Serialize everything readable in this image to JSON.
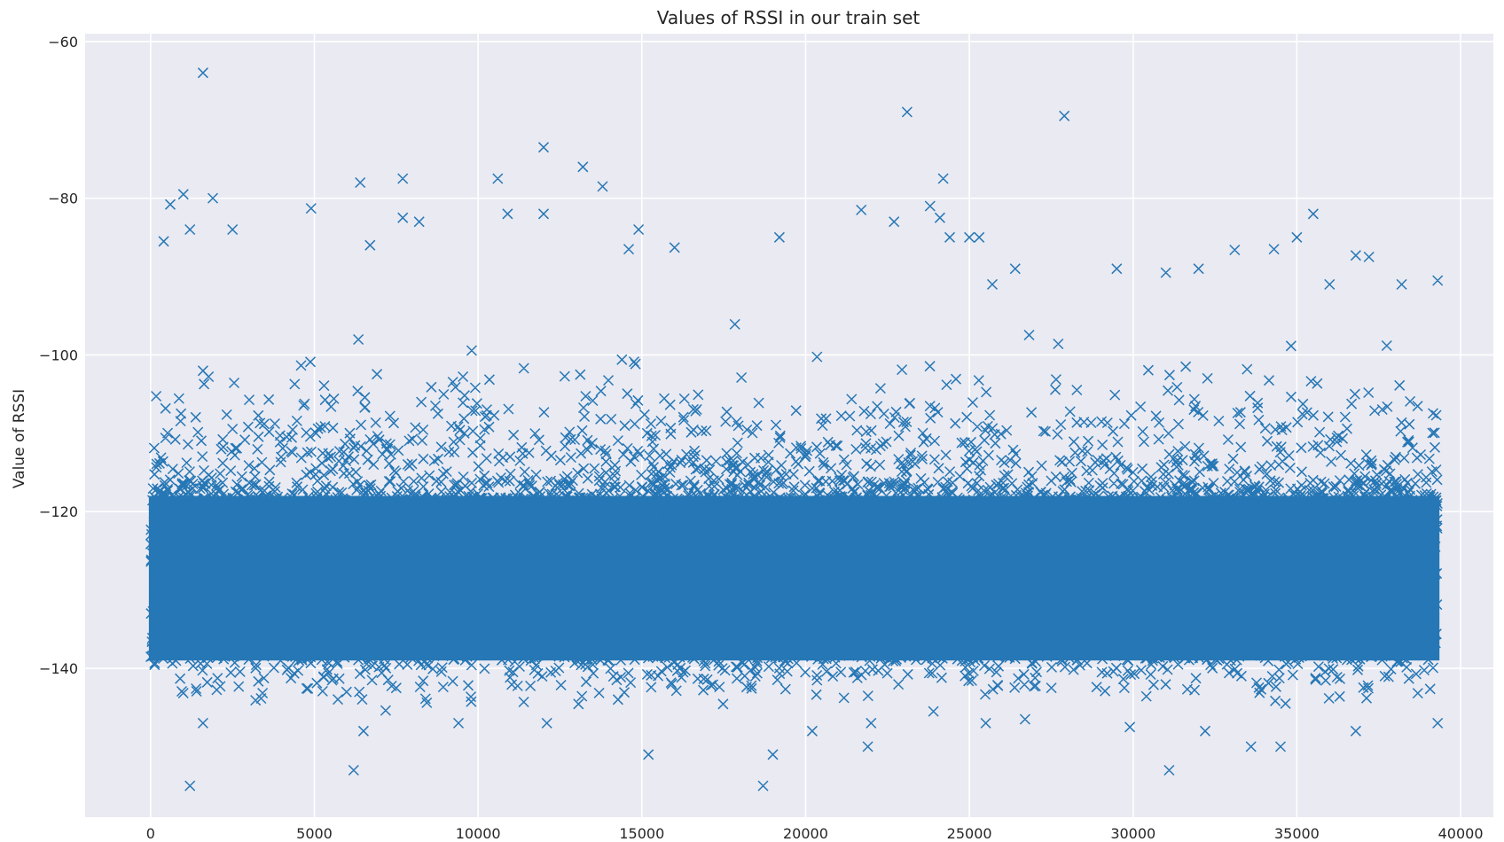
{
  "chart_data": {
    "type": "scatter",
    "title": "Values of RSSI in our train set",
    "xlabel": "",
    "ylabel": "Value of RSSI",
    "xlim": [
      -2000,
      41000
    ],
    "ylim": [
      -159,
      -59
    ],
    "xticks": [
      0,
      5000,
      10000,
      15000,
      20000,
      25000,
      30000,
      35000,
      40000
    ],
    "yticks": [
      -60,
      -80,
      -100,
      -120,
      -140
    ],
    "grid": true,
    "marker": "x",
    "color": "#2677b5",
    "background": "#eaeaf2",
    "series": [
      {
        "x_range": [
          0,
          39300
        ],
        "n_points": 39300,
        "dense_band": [
          -139,
          -118
        ],
        "outliers": [
          [
            1600,
            -64
          ],
          [
            23100,
            -69
          ],
          [
            27900,
            -69.5
          ],
          [
            12000,
            -73.5
          ],
          [
            13200,
            -76
          ],
          [
            24200,
            -77.5
          ],
          [
            7700,
            -77.5
          ],
          [
            10600,
            -77.5
          ],
          [
            6400,
            -78
          ],
          [
            13800,
            -78.5
          ],
          [
            1000,
            -79.5
          ],
          [
            1900,
            -80
          ],
          [
            600,
            -80.8
          ],
          [
            23800,
            -81
          ],
          [
            4900,
            -81.3
          ],
          [
            21700,
            -81.5
          ],
          [
            35500,
            -82
          ],
          [
            12000,
            -82
          ],
          [
            10900,
            -82
          ],
          [
            7700,
            -82.5
          ],
          [
            24100,
            -82.5
          ],
          [
            22700,
            -83
          ],
          [
            8200,
            -83
          ],
          [
            1200,
            -84
          ],
          [
            2500,
            -84
          ],
          [
            14900,
            -84
          ],
          [
            35000,
            -85
          ],
          [
            19200,
            -85
          ],
          [
            24400,
            -85
          ],
          [
            25000,
            -85
          ],
          [
            25300,
            -85
          ],
          [
            400,
            -85.5
          ],
          [
            6700,
            -86
          ],
          [
            14600,
            -86.5
          ],
          [
            16000,
            -86.3
          ],
          [
            33100,
            -86.6
          ],
          [
            34300,
            -86.5
          ],
          [
            36800,
            -87.3
          ],
          [
            37200,
            -87.5
          ],
          [
            26400,
            -89
          ],
          [
            29500,
            -89
          ],
          [
            31000,
            -89.5
          ],
          [
            32000,
            -89
          ],
          [
            25700,
            -91
          ],
          [
            36000,
            -91
          ],
          [
            38200,
            -91
          ],
          [
            39300,
            -90.5
          ],
          [
            1200,
            -155
          ],
          [
            6200,
            -153
          ],
          [
            18700,
            -155
          ],
          [
            31100,
            -153
          ],
          [
            15200,
            -151
          ],
          [
            19000,
            -151
          ],
          [
            21900,
            -150
          ],
          [
            33600,
            -150
          ],
          [
            34500,
            -150
          ],
          [
            1600,
            -147
          ],
          [
            12100,
            -147
          ],
          [
            9400,
            -147
          ],
          [
            22000,
            -147
          ],
          [
            39300,
            -147
          ],
          [
            29900,
            -147.5
          ],
          [
            32200,
            -148
          ],
          [
            36800,
            -148
          ],
          [
            6500,
            -148
          ],
          [
            20200,
            -148
          ],
          [
            25500,
            -147
          ],
          [
            26700,
            -146.5
          ]
        ]
      }
    ]
  }
}
